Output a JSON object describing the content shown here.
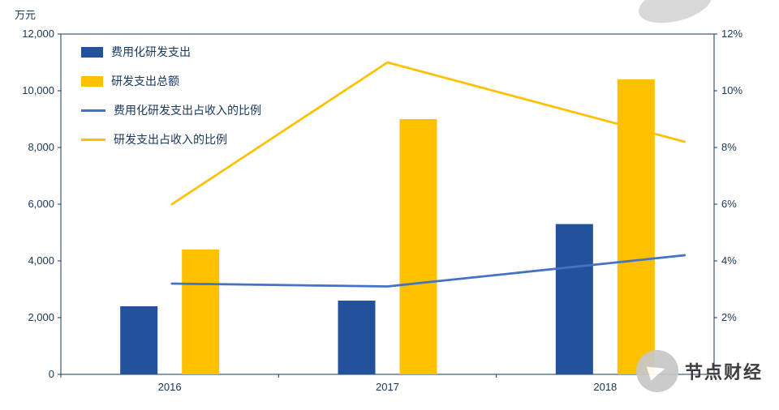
{
  "watermark": {
    "text": "节点财经"
  },
  "chart_data": {
    "type": "combo-bar-line",
    "unit_label": "万元",
    "categories": [
      "2016",
      "2017",
      "2018"
    ],
    "bar_series": [
      {
        "name": "费用化研发支出",
        "color": "#24519C",
        "values": [
          2400,
          2600,
          5300
        ]
      },
      {
        "name": "研发支出总额",
        "color": "#FFC000",
        "values": [
          4400,
          9000,
          10400
        ]
      }
    ],
    "line_series": [
      {
        "name": "费用化研发支出占收入的比例",
        "color": "#4472C4",
        "values": [
          3.2,
          3.1,
          4.2
        ],
        "unit": "%"
      },
      {
        "name": "研发支出占收入的比例",
        "color": "#FFC000",
        "values": [
          6.0,
          11.0,
          8.2
        ],
        "unit": "%"
      }
    ],
    "left_axis": {
      "min": 0,
      "max": 12000,
      "step": 2000,
      "tick_labels": [
        "0",
        "2,000",
        "4,000",
        "6,000",
        "8,000",
        "10,000",
        "12,000"
      ]
    },
    "right_axis": {
      "min": 0,
      "max": 12,
      "step": 2,
      "tick_labels": [
        "2%",
        "4%",
        "6%",
        "8%",
        "10%",
        "12%"
      ]
    },
    "grid": false,
    "legend_position": "top-left",
    "colors": {
      "axis": "#17375E",
      "tick_text": "#17375E"
    }
  }
}
